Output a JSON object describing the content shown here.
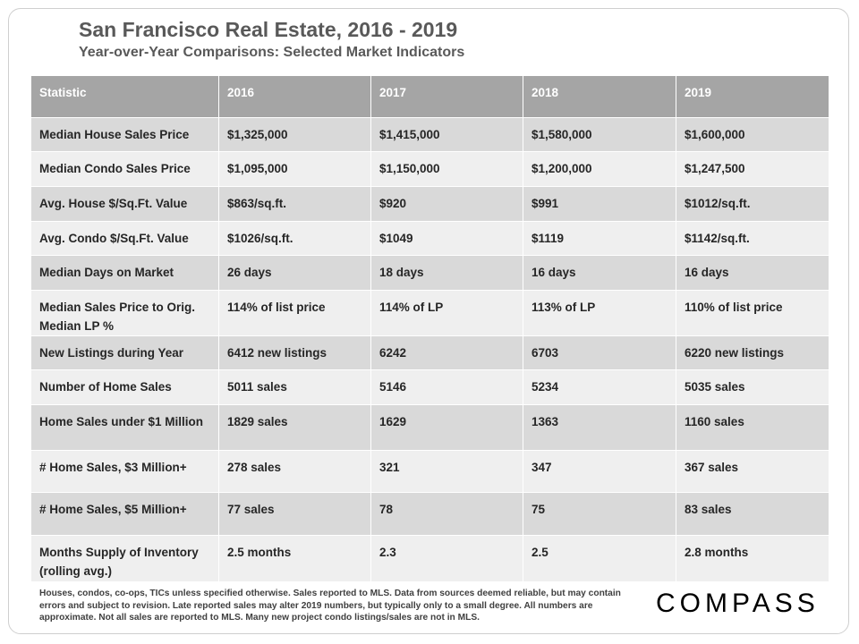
{
  "header": {
    "title": "San Francisco Real Estate, 2016 - 2019",
    "subtitle": "Year-over-Year  Comparisons:  Selected Market Indicators"
  },
  "table": {
    "columns": [
      "Statistic",
      "2016",
      "2017",
      "2018",
      "2019"
    ],
    "rows": [
      [
        "Median House Sales Price",
        "$1,325,000",
        "$1,415,000",
        "$1,580,000",
        "$1,600,000"
      ],
      [
        "Median Condo Sales Price",
        "$1,095,000",
        "$1,150,000",
        "$1,200,000",
        "$1,247,500"
      ],
      [
        "Avg. House $/Sq.Ft. Value",
        "$863/sq.ft.",
        "$920",
        "$991",
        "$1012/sq.ft."
      ],
      [
        "Avg. Condo $/Sq.Ft. Value",
        "$1026/sq.ft.",
        "$1049",
        "$1119",
        "$1142/sq.ft."
      ],
      [
        "Median Days on Market",
        "26 days",
        "18 days",
        "16 days",
        "16 days"
      ],
      [
        "Median Sales Price to Orig. Median LP %",
        "114% of list price",
        "114% of LP",
        "113% of LP",
        "110% of list price"
      ],
      [
        "New Listings during Year",
        "6412 new listings",
        "6242",
        "6703",
        "6220 new listings"
      ],
      [
        "Number of Home Sales",
        "5011 sales",
        "5146",
        "5234",
        "5035 sales"
      ],
      [
        "Home Sales under $1 Million",
        "1829 sales",
        "1629",
        "1363",
        "1160 sales"
      ],
      [
        "# Home Sales, $3 Million+",
        "278 sales",
        "321",
        "347",
        "367 sales"
      ],
      [
        "# Home Sales, $5 Million+",
        "77 sales",
        "78",
        "75",
        "83 sales"
      ],
      [
        "Months Supply of Inventory (rolling avg.)",
        "2.5 months",
        "2.3",
        "2.5",
        "2.8 months"
      ]
    ]
  },
  "footer": {
    "note": "Houses, condos, co-ops, TICs unless specified otherwise. Sales reported to MLS. Data from sources deemed reliable, but may contain errors and subject to revision. Late reported sales may alter 2019 numbers, but typically only to a small degree. All numbers are approximate. Not all sales are reported to MLS. Many new project condo listings/sales are not in MLS.",
    "logo": "COMPASS"
  }
}
